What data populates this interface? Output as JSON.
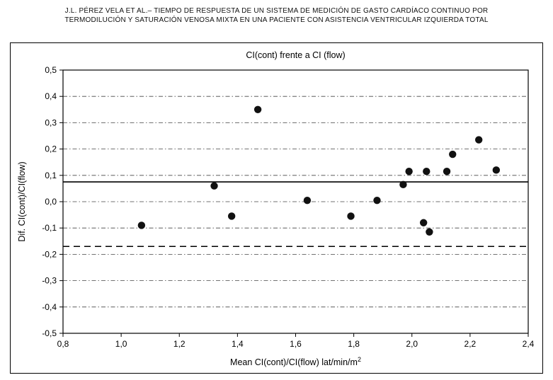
{
  "header": {
    "line1": "J.L. PÉREZ VELA ET AL.– TIEMPO DE RESPUESTA DE UN SISTEMA DE MEDICIÓN DE GASTO CARDÍACO CONTINUO POR",
    "line2": "TERMODILUCIÓN Y SATURACIÓN VENOSA MIXTA EN UNA PACIENTE CON ASISTENCIA VENTRICULAR IZQUIERDA TOTAL"
  },
  "chart_data": {
    "type": "scatter",
    "title": "CI(cont) frente a CI (flow)",
    "xlabel": "Mean CI(cont)/CI(flow)  lat/min/m",
    "xlabel_sup": "2",
    "ylabel": "Dif. CI(cont)/CI(flow)",
    "xlim": [
      0.8,
      2.4
    ],
    "ylim": [
      -0.5,
      0.5
    ],
    "xticks": {
      "values": [
        0.8,
        1.0,
        1.2,
        1.4,
        1.6,
        1.8,
        2.0,
        2.2,
        2.4
      ],
      "labels": [
        "0,8",
        "1,0",
        "1,2",
        "1,4",
        "1,6",
        "1,8",
        "2,0",
        "2,2",
        "2,4"
      ]
    },
    "yticks": {
      "values": [
        -0.5,
        -0.4,
        -0.3,
        -0.2,
        -0.1,
        0.0,
        0.1,
        0.2,
        0.3,
        0.4,
        0.5
      ],
      "labels": [
        "-0,5",
        "-0,4",
        "-0,3",
        "-0,2",
        "-0,1",
        "0,0",
        "0,1",
        "0,2",
        "0,3",
        "0,4",
        "0,5"
      ]
    },
    "grid": "horizontal-dash-dot",
    "legend": "none",
    "ref_lines": [
      {
        "y": 0.075,
        "style": "solid"
      },
      {
        "y": -0.17,
        "style": "dashed"
      }
    ],
    "points": [
      [
        1.07,
        -0.09
      ],
      [
        1.32,
        0.06
      ],
      [
        1.38,
        -0.055
      ],
      [
        1.47,
        0.35
      ],
      [
        1.64,
        0.005
      ],
      [
        1.79,
        -0.055
      ],
      [
        1.88,
        0.005
      ],
      [
        1.97,
        0.065
      ],
      [
        1.99,
        0.115
      ],
      [
        2.04,
        -0.08
      ],
      [
        2.05,
        0.115
      ],
      [
        2.06,
        -0.115
      ],
      [
        2.12,
        0.115
      ],
      [
        2.14,
        0.18
      ],
      [
        2.23,
        0.235
      ],
      [
        2.29,
        0.12
      ]
    ]
  },
  "colors": {
    "marker": "#111111",
    "line": "#000000",
    "grid": "#444444",
    "background": "#ffffff"
  }
}
